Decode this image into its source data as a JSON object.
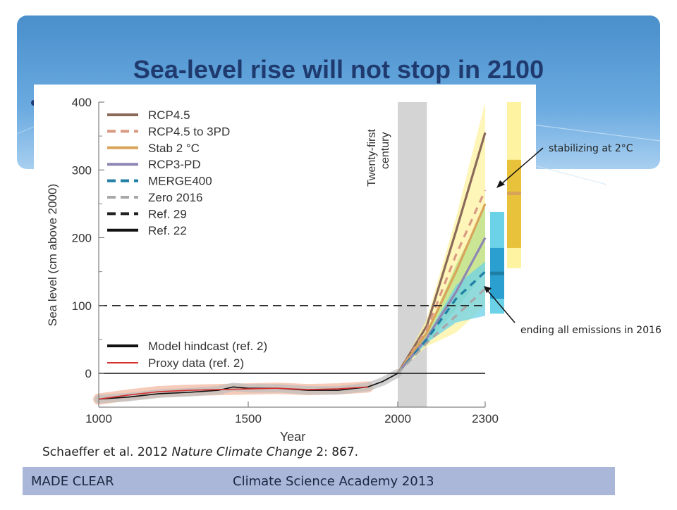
{
  "slide": {
    "title": "Sea-level rise will not stop in 2100",
    "annotations": [
      "stabilizing at 2°C",
      "ending all emissions in 2016"
    ]
  },
  "citation": {
    "authors": "Schaeffer et al. 2012 ",
    "journal": "Nature Climate Change",
    "rest": " 2: 867."
  },
  "footer": {
    "left": "MADE CLEAR",
    "right": "Climate Science Academy 2013"
  },
  "colors": {
    "banner": "#5d9fd6",
    "footer": "#aab7d8",
    "title": "#1f3a6e"
  },
  "chart_data": {
    "type": "line",
    "xlabel": "Year",
    "ylabel": "Sea level (cm above 2000)",
    "xlim": [
      1000,
      2300
    ],
    "ylim": [
      -50,
      400
    ],
    "xticks": [
      1000,
      1500,
      2000,
      2300
    ],
    "yticks": [
      0,
      100,
      200,
      300,
      400
    ],
    "shaded_region_label": "Twenty-first century",
    "shaded_region": [
      2000,
      2100
    ],
    "legend": [
      {
        "label": "RCP4.5",
        "color": "#8b6a5a",
        "dash": false
      },
      {
        "label": "RCP4.5 to 3PD",
        "color": "#d99a84",
        "dash": true
      },
      {
        "label": "Stab 2 °C",
        "color": "#d8a45a",
        "dash": false
      },
      {
        "label": "RCP3-PD",
        "color": "#8e86b3",
        "dash": false
      },
      {
        "label": "MERGE400",
        "color": "#1f7ea3",
        "dash": true
      },
      {
        "label": "Zero 2016",
        "color": "#a8a8a8",
        "dash": true
      },
      {
        "label": "Ref. 29",
        "color": "#222222",
        "dash": true
      },
      {
        "label": "Ref. 22",
        "color": "#111111",
        "dash": false
      }
    ],
    "legend2": [
      {
        "label": "Model hindcast (ref. 2)",
        "color": "#111111"
      },
      {
        "label": "Proxy data (ref. 2)",
        "color": "#d43030"
      }
    ],
    "bands": [
      {
        "name": "upper range",
        "color": "#fdf3a0",
        "x": [
          2000,
          2100,
          2200,
          2300
        ],
        "lower": [
          0,
          40,
          60,
          100
        ],
        "upper": [
          0,
          80,
          230,
          400
        ]
      },
      {
        "name": "middle range",
        "color": "#b8e08a",
        "x": [
          2000,
          2100,
          2200,
          2300
        ],
        "lower": [
          0,
          45,
          95,
          150
        ],
        "upper": [
          0,
          60,
          160,
          245
        ]
      },
      {
        "name": "lower range",
        "color": "#6cd2e8",
        "x": [
          2000,
          2100,
          2200,
          2300
        ],
        "lower": [
          0,
          45,
          75,
          85
        ],
        "upper": [
          0,
          55,
          130,
          165
        ]
      }
    ],
    "series": [
      {
        "name": "RCP4.5",
        "color": "#8b6a5a",
        "dash": false,
        "x": [
          2000,
          2100,
          2200,
          2300
        ],
        "y": [
          0,
          70,
          210,
          355
        ]
      },
      {
        "name": "RCP4.5 to 3PD",
        "color": "#d99a84",
        "dash": true,
        "x": [
          2000,
          2100,
          2200,
          2300
        ],
        "y": [
          0,
          65,
          175,
          270
        ]
      },
      {
        "name": "Stab 2 °C",
        "color": "#d8a45a",
        "dash": false,
        "x": [
          2000,
          2100,
          2200,
          2300
        ],
        "y": [
          0,
          60,
          150,
          250
        ]
      },
      {
        "name": "RCP3-PD",
        "color": "#8e86b3",
        "dash": false,
        "x": [
          2000,
          2100,
          2200,
          2300
        ],
        "y": [
          0,
          52,
          120,
          200
        ]
      },
      {
        "name": "MERGE400",
        "color": "#1f7ea3",
        "dash": true,
        "x": [
          2000,
          2100,
          2200,
          2300
        ],
        "y": [
          0,
          50,
          110,
          150
        ]
      },
      {
        "name": "Zero 2016",
        "color": "#a8a8a8",
        "dash": true,
        "x": [
          2000,
          2100,
          2200,
          2300
        ],
        "y": [
          0,
          45,
          85,
          125
        ]
      },
      {
        "name": "Ref. 29",
        "color": "#222222",
        "dash": true,
        "x": [
          1000,
          2300
        ],
        "y": [
          100,
          100
        ]
      },
      {
        "name": "Ref. 22",
        "color": "#111111",
        "dash": false,
        "x": [
          1000,
          2300
        ],
        "y": [
          0,
          0
        ]
      },
      {
        "name": "Model hindcast (ref. 2)",
        "color": "#111111",
        "dash": false,
        "x": [
          1000,
          1100,
          1200,
          1300,
          1400,
          1450,
          1500,
          1600,
          1700,
          1800,
          1900,
          1950,
          2000
        ],
        "y": [
          -38,
          -35,
          -30,
          -28,
          -25,
          -20,
          -22,
          -22,
          -25,
          -25,
          -20,
          -12,
          0
        ]
      },
      {
        "name": "Proxy data (ref. 2)",
        "color": "#d43030",
        "dash": false,
        "x": [
          1000,
          1100,
          1200,
          1300,
          1400,
          1500,
          1600,
          1700,
          1800,
          1900
        ],
        "y": [
          -38,
          -32,
          -27,
          -25,
          -24,
          -23,
          -22,
          -24,
          -23,
          -20
        ]
      }
    ],
    "side_bars": [
      {
        "label": "stabilizing at 2°C",
        "color": "#fdf3a0",
        "range": [
          155,
          400
        ]
      },
      {
        "label": "stabilizing at 2°C",
        "color": "#e8c23a",
        "range": [
          185,
          315
        ]
      },
      {
        "label": "ending all emissions in 2016",
        "color": "#6cd2e8",
        "range": [
          88,
          238
        ]
      },
      {
        "label": "ending all emissions in 2016",
        "color": "#2a9fd0",
        "range": [
          110,
          185
        ]
      }
    ]
  }
}
